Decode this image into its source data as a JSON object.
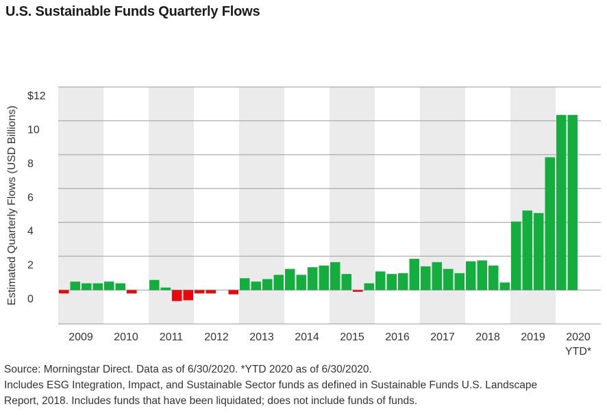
{
  "title": "U.S. Sustainable Funds Quarterly Flows",
  "notes": [
    "Source: Morningstar Direct. Data as of 6/30/2020. *YTD 2020 as of 6/30/2020.",
    "Includes ESG Integration, Impact, and Sustainable Sector funds as defined in Sustainable Funds U.S. Landscape",
    "Report, 2018. Includes funds that have been liquidated; does not include funds of funds."
  ],
  "colors": {
    "positive": "#14ae3f",
    "negative": "#e8070b",
    "band": "#ebebeb",
    "grid": "#9a9a9a"
  },
  "chart_data": {
    "type": "bar",
    "title": "U.S. Sustainable Funds Quarterly Flows",
    "ylabel": "Estimated Quarterly Flows (USD Billions)",
    "ylim": [
      -2,
      12
    ],
    "yticks": [
      {
        "value": 12,
        "label": "$12"
      },
      {
        "value": 10,
        "label": "10"
      },
      {
        "value": 8,
        "label": "8"
      },
      {
        "value": 6,
        "label": "6"
      },
      {
        "value": 4,
        "label": "4"
      },
      {
        "value": 2,
        "label": "2"
      },
      {
        "value": 0,
        "label": "0"
      }
    ],
    "grid": true,
    "years": [
      "2009",
      "2010",
      "2011",
      "2012",
      "2013",
      "2014",
      "2015",
      "2016",
      "2017",
      "2018",
      "2019",
      "2020"
    ],
    "year_sublabels": {
      "2020": "YTD*"
    },
    "shaded_years": [
      "2009",
      "2011",
      "2013",
      "2015",
      "2017",
      "2019"
    ],
    "values": [
      -0.2,
      0.5,
      0.4,
      0.4,
      0.5,
      0.4,
      -0.2,
      0.0,
      0.6,
      0.15,
      -0.65,
      -0.6,
      -0.2,
      -0.2,
      0.0,
      -0.25,
      0.7,
      0.5,
      0.65,
      0.9,
      1.25,
      0.9,
      1.35,
      1.45,
      1.65,
      0.95,
      -0.1,
      0.4,
      1.1,
      0.95,
      1.0,
      1.85,
      1.4,
      1.65,
      1.25,
      1.0,
      1.7,
      1.75,
      1.45,
      0.45,
      4.05,
      4.7,
      4.55,
      7.85,
      10.35,
      10.35
    ]
  }
}
